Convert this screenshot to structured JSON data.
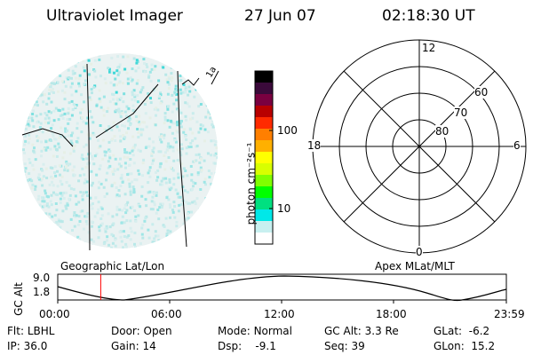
{
  "header": {
    "title": "Ultraviolet Imager",
    "date": "27 Jun 07",
    "time": "02:18:30 UT"
  },
  "colorbar": {
    "unit_label": "photon cm⁻²s⁻¹",
    "ticks": [
      "100",
      "10"
    ],
    "colors": [
      "#000000",
      "#3a0a3a",
      "#7a0040",
      "#b80000",
      "#ff2a00",
      "#ff7f00",
      "#ffb000",
      "#ffff00",
      "#d8ff00",
      "#80ff00",
      "#00ff00",
      "#00e080",
      "#00e8e8",
      "#c8f0f0",
      "#ffffff"
    ]
  },
  "polar_plot": {
    "mlt_labels": {
      "top": "12",
      "bottom": "0",
      "left": "18",
      "right": "6"
    },
    "lat_labels": [
      "60",
      "70",
      "80"
    ]
  },
  "timeline": {
    "ylabel": "GC Alt",
    "yticks": [
      "9.0",
      "1.8"
    ],
    "left_label": "Geographic Lat/Lon",
    "right_label": "Apex MLat/MLT",
    "xticks": [
      "00:00",
      "06:00",
      "12:00",
      "18:00",
      "23:59"
    ],
    "marker_time_hours": 2.3,
    "marker_color": "#ff0000"
  },
  "image_stamp": "1a",
  "footer": {
    "row1": [
      {
        "label": "Flt:",
        "value": "LBHL"
      },
      {
        "label": "Door:",
        "value": "Open"
      },
      {
        "label": "Mode:",
        "value": "Normal"
      },
      {
        "label": "GC Alt:",
        "value": "3.3 Re"
      },
      {
        "label": "GLat:",
        "value": "-6.2"
      }
    ],
    "row2": [
      {
        "label": "IP:",
        "value": "36.0"
      },
      {
        "label": "Gain:",
        "value": "14"
      },
      {
        "label": "Dsp:",
        "value": "-9.1"
      },
      {
        "label": "Seq:",
        "value": "39"
      },
      {
        "label": "GLon:",
        "value": "15.2"
      }
    ]
  }
}
